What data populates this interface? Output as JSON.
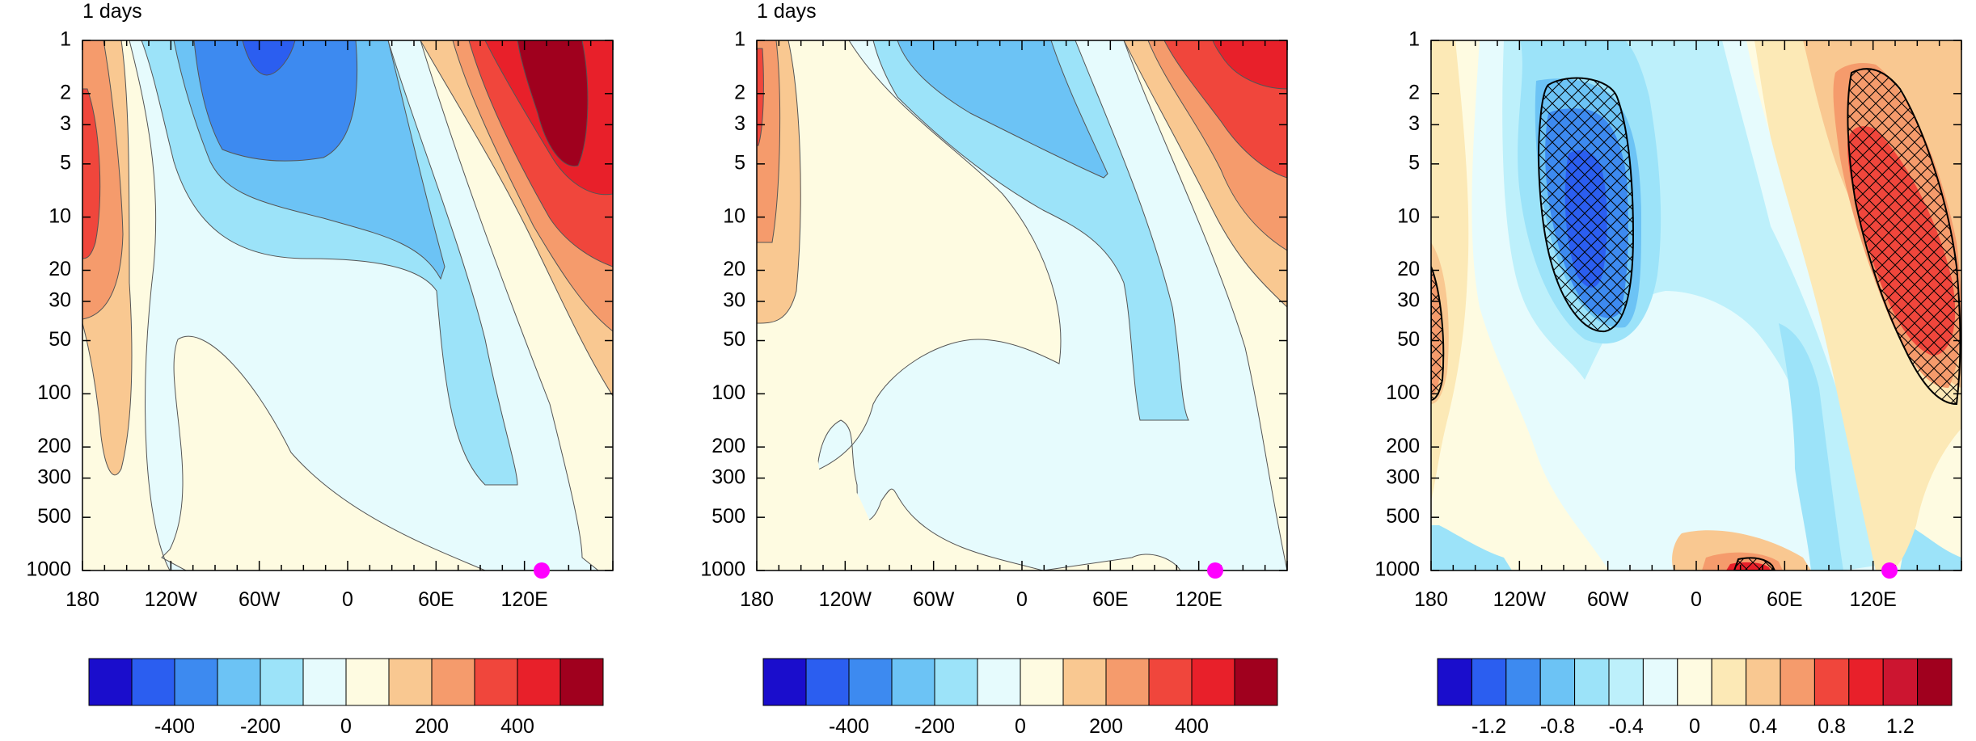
{
  "chart_data": [
    {
      "type": "heatmap",
      "title": "1 days",
      "x_ticks": [
        "180",
        "120W",
        "60W",
        "0",
        "60E",
        "120E"
      ],
      "x_tick_lon": [
        -180,
        -120,
        -60,
        0,
        60,
        120
      ],
      "xlim": [
        -180,
        180
      ],
      "y_ticks": [
        "1",
        "2",
        "3",
        "5",
        "10",
        "20",
        "30",
        "50",
        "100",
        "200",
        "300",
        "500",
        "1000"
      ],
      "y_values": [
        1,
        2,
        3,
        5,
        10,
        20,
        30,
        50,
        100,
        200,
        300,
        500,
        1000
      ],
      "ylim": [
        1,
        1000
      ],
      "y_scale": "log",
      "y_inverted": true,
      "colorbar": {
        "colors": [
          "#1a0dcc",
          "#2b5ef0",
          "#3d8af0",
          "#6cc3f5",
          "#9ce3f9",
          "#e6fbfd",
          "#fefbe1",
          "#f9c891",
          "#f59b6c",
          "#f0463c",
          "#e8202a",
          "#a0001e"
        ],
        "tick_labels": [
          "-400",
          "-200",
          "0",
          "200",
          "400"
        ],
        "tick_positions": [
          2,
          4,
          6,
          8,
          10
        ]
      },
      "marker": {
        "lon": 130,
        "level": 1000,
        "color": "#ff00ff"
      }
    },
    {
      "type": "heatmap",
      "title": "1 days",
      "x_ticks": [
        "180",
        "120W",
        "60W",
        "0",
        "60E",
        "120E"
      ],
      "x_tick_lon": [
        -180,
        -120,
        -60,
        0,
        60,
        120
      ],
      "xlim": [
        -180,
        180
      ],
      "y_ticks": [
        "1",
        "2",
        "3",
        "5",
        "10",
        "20",
        "30",
        "50",
        "100",
        "200",
        "300",
        "500",
        "1000"
      ],
      "y_values": [
        1,
        2,
        3,
        5,
        10,
        20,
        30,
        50,
        100,
        200,
        300,
        500,
        1000
      ],
      "ylim": [
        1,
        1000
      ],
      "y_scale": "log",
      "y_inverted": true,
      "colorbar": {
        "colors": [
          "#1a0dcc",
          "#2b5ef0",
          "#3d8af0",
          "#6cc3f5",
          "#9ce3f9",
          "#e6fbfd",
          "#fefbe1",
          "#f9c891",
          "#f59b6c",
          "#f0463c",
          "#e8202a",
          "#a0001e"
        ],
        "tick_labels": [
          "-400",
          "-200",
          "0",
          "200",
          "400"
        ],
        "tick_positions": [
          2,
          4,
          6,
          8,
          10
        ]
      },
      "marker": {
        "lon": 130,
        "level": 1000,
        "color": "#ff00ff"
      }
    },
    {
      "type": "heatmap",
      "title": "",
      "x_ticks": [
        "180",
        "120W",
        "60W",
        "0",
        "60E",
        "120E"
      ],
      "x_tick_lon": [
        -180,
        -120,
        -60,
        0,
        60,
        120
      ],
      "xlim": [
        -180,
        180
      ],
      "y_ticks": [
        "1",
        "2",
        "3",
        "5",
        "10",
        "20",
        "30",
        "50",
        "100",
        "200",
        "300",
        "500",
        "1000"
      ],
      "y_values": [
        1,
        2,
        3,
        5,
        10,
        20,
        30,
        50,
        100,
        200,
        300,
        500,
        1000
      ],
      "ylim": [
        1,
        1000
      ],
      "y_scale": "log",
      "y_inverted": true,
      "hatching": "significance",
      "colorbar": {
        "colors": [
          "#1a0dcc",
          "#2b5ef0",
          "#3d8af0",
          "#6cc3f5",
          "#9ce3f9",
          "#bdf0fb",
          "#e6fbfd",
          "#fefbe1",
          "#fce9b6",
          "#f9c891",
          "#f59b6c",
          "#f0463c",
          "#e8202a",
          "#cc1530",
          "#a0001e"
        ],
        "tick_labels": [
          "-1.2",
          "-0.8",
          "-0.4",
          "0",
          "0.4",
          "0.8",
          "1.2"
        ],
        "tick_positions": [
          1.5,
          3.5,
          5.5,
          7.5,
          9.5,
          11.5,
          13.5
        ]
      },
      "marker": {
        "lon": 130,
        "level": 1000,
        "color": "#ff00ff"
      }
    }
  ]
}
